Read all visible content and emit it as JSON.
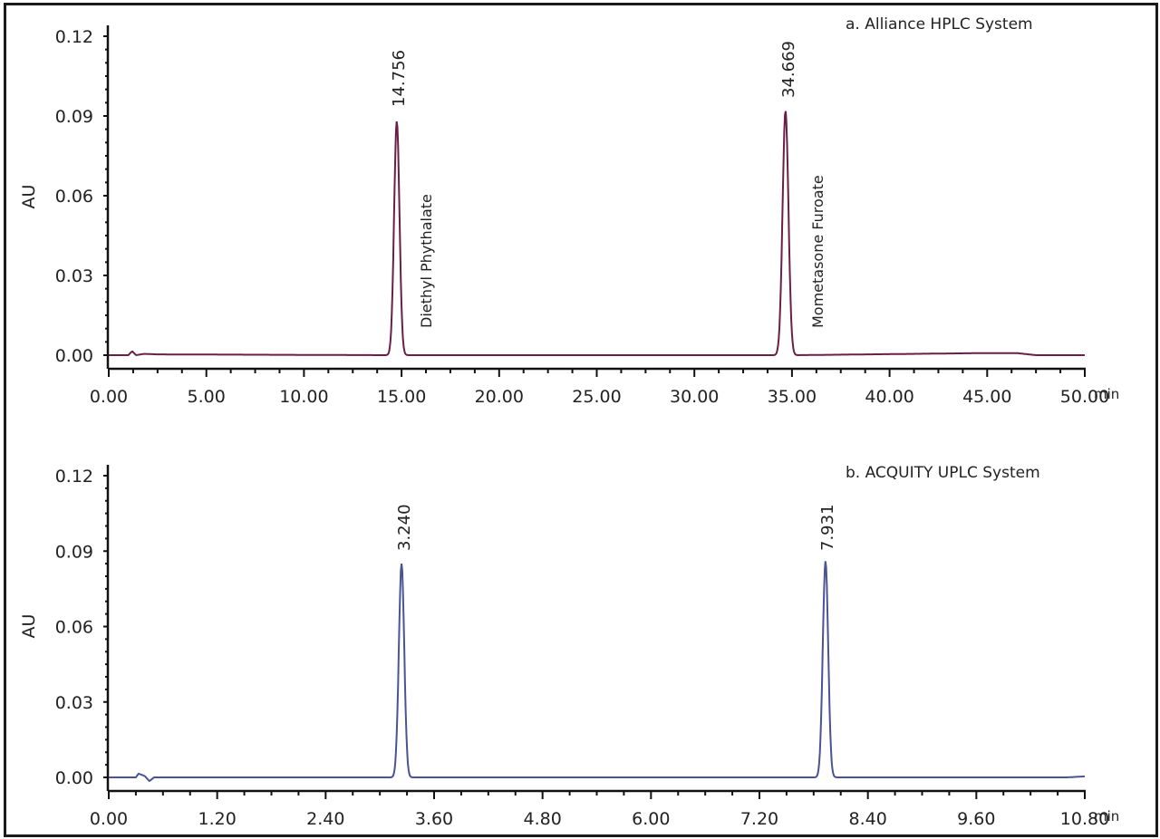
{
  "chart_data": [
    {
      "type": "line",
      "title": "a. Alliance HPLC System",
      "xlabel": "min",
      "ylabel": "AU",
      "xlim": [
        0,
        50
      ],
      "ylim": [
        0,
        0.12
      ],
      "x_ticks": [
        "0.00",
        "5.00",
        "10.00",
        "15.00",
        "20.00",
        "25.00",
        "30.00",
        "35.00",
        "40.00",
        "45.00",
        "50.00"
      ],
      "y_ticks": [
        "0.00",
        "0.03",
        "0.06",
        "0.09",
        "0.12"
      ],
      "grid": false,
      "line_color": "#6b1f45",
      "peaks": [
        {
          "rt": 14.756,
          "rt_label": "14.756",
          "height": 0.088,
          "width": 0.55,
          "compound": "Diethyl Phythalate"
        },
        {
          "rt": 34.669,
          "rt_label": "34.669",
          "height": 0.092,
          "width": 0.6,
          "compound": "Mometasone Furoate"
        }
      ],
      "baseline_artifacts": [
        {
          "x": 1.2,
          "y": 0.0015
        },
        {
          "x": 1.8,
          "y": 0.0005
        },
        {
          "x": 2.5,
          "y": 0.0003
        }
      ],
      "series": [
        {
          "name": "Alliance HPLC",
          "x": [
            0,
            1.0,
            1.2,
            1.4,
            1.8,
            2.5,
            14.2,
            14.5,
            14.756,
            15.0,
            15.3,
            34.1,
            34.4,
            34.669,
            34.9,
            35.2,
            45.0,
            46.5,
            47.5,
            50.0
          ],
          "values": [
            0,
            0,
            0.0015,
            0,
            0.0005,
            0.0003,
            0,
            0.02,
            0.088,
            0.02,
            0,
            0,
            0.02,
            0.092,
            0.02,
            0,
            0.0008,
            0.0008,
            0,
            0
          ]
        }
      ]
    },
    {
      "type": "line",
      "title": "b. ACQUITY UPLC System",
      "xlabel": "min",
      "ylabel": "AU",
      "xlim": [
        0,
        10.8
      ],
      "ylim": [
        0,
        0.12
      ],
      "x_ticks": [
        "0.00",
        "1.20",
        "2.40",
        "3.60",
        "4.80",
        "6.00",
        "7.20",
        "8.40",
        "9.60",
        "10.80"
      ],
      "y_ticks": [
        "0.00",
        "0.03",
        "0.06",
        "0.09",
        "0.12"
      ],
      "grid": false,
      "line_color": "#4a5494",
      "peaks": [
        {
          "rt": 3.24,
          "rt_label": "3.240",
          "height": 0.085,
          "width": 0.12
        },
        {
          "rt": 7.931,
          "rt_label": "7.931",
          "height": 0.086,
          "width": 0.12
        }
      ],
      "series": [
        {
          "name": "ACQUITY UPLC",
          "x": [
            0,
            0.3,
            0.33,
            0.4,
            0.45,
            0.5,
            3.12,
            3.18,
            3.24,
            3.3,
            3.36,
            7.81,
            7.87,
            7.931,
            7.99,
            8.05,
            10.6,
            10.8
          ],
          "values": [
            0,
            0,
            0.0015,
            0.0005,
            -0.0015,
            0,
            0,
            0.02,
            0.085,
            0.02,
            0,
            0,
            0.02,
            0.086,
            0.02,
            0,
            0,
            0.0004
          ]
        }
      ]
    }
  ],
  "panels": {
    "top": {
      "title": "a. Alliance HPLC System",
      "ylabel": "AU",
      "unit": "min",
      "peak1_label": "14.756",
      "peak2_label": "34.669",
      "compound1": "Diethyl Phythalate",
      "compound2": "Mometasone Furoate"
    },
    "bottom": {
      "title": "b. ACQUITY UPLC System",
      "ylabel": "AU",
      "unit": "min",
      "peak1_label": "3.240",
      "peak2_label": "7.931"
    }
  }
}
